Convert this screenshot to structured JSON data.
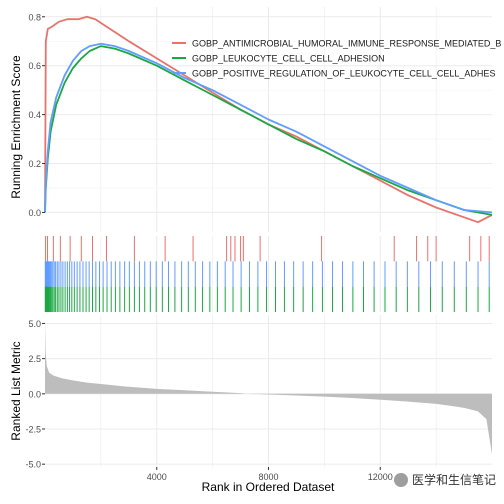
{
  "chart_data": {
    "type": "line",
    "xlabel": "Rank in Ordered Dataset",
    "x_ticks": [
      4000,
      8000,
      12000
    ],
    "xlim": [
      0,
      16000
    ],
    "top_panel": {
      "ylabel": "Running Enrichment Score",
      "ylim": [
        -0.08,
        0.84
      ],
      "y_ticks": [
        0.0,
        0.2,
        0.4,
        0.6,
        0.8
      ],
      "y_tick_labels": [
        "0.0",
        "0.2",
        "0.4",
        "0.6",
        "0.8"
      ],
      "legend_position": "top-right",
      "series": [
        {
          "name": "GOBP_ANTIMICROBIAL_HUMORAL_IMMUNE_RESPONSE_MEDIATED_B",
          "color": "#E8736C",
          "x": [
            0,
            30,
            100,
            250,
            500,
            800,
            1200,
            1500,
            1800,
            2200,
            2600,
            3000,
            4000,
            5000,
            6000,
            7000,
            8000,
            9000,
            10000,
            11000,
            12000,
            13000,
            14000,
            15000,
            15500,
            16000
          ],
          "y": [
            0.0,
            0.7,
            0.75,
            0.76,
            0.78,
            0.79,
            0.79,
            0.8,
            0.79,
            0.76,
            0.73,
            0.7,
            0.63,
            0.56,
            0.49,
            0.42,
            0.36,
            0.31,
            0.25,
            0.19,
            0.13,
            0.07,
            0.02,
            -0.02,
            -0.04,
            -0.01
          ]
        },
        {
          "name": "GOBP_LEUKOCYTE_CELL_CELL_ADHESION",
          "color": "#1BA744",
          "x": [
            0,
            30,
            100,
            200,
            400,
            700,
            1000,
            1300,
            1600,
            2000,
            2500,
            3000,
            4000,
            5000,
            6000,
            7000,
            8000,
            9000,
            10000,
            11000,
            12000,
            13000,
            14000,
            15000,
            16000
          ],
          "y": [
            0.0,
            0.1,
            0.22,
            0.33,
            0.44,
            0.53,
            0.59,
            0.63,
            0.66,
            0.68,
            0.67,
            0.65,
            0.6,
            0.54,
            0.48,
            0.42,
            0.36,
            0.3,
            0.25,
            0.19,
            0.14,
            0.09,
            0.05,
            0.01,
            -0.01
          ]
        },
        {
          "name": "GOBP_POSITIVE_REGULATION_OF_LEUKOCYTE_CELL_CELL_ADHES",
          "color": "#619CFF",
          "x": [
            0,
            30,
            100,
            200,
            400,
            700,
            1000,
            1300,
            1600,
            2000,
            2500,
            3000,
            4000,
            5000,
            6000,
            7000,
            8000,
            9000,
            10000,
            11000,
            12000,
            13000,
            14000,
            15000,
            16000
          ],
          "y": [
            0.0,
            0.12,
            0.25,
            0.37,
            0.47,
            0.56,
            0.62,
            0.66,
            0.68,
            0.69,
            0.68,
            0.66,
            0.61,
            0.55,
            0.5,
            0.44,
            0.38,
            0.33,
            0.27,
            0.21,
            0.15,
            0.1,
            0.05,
            0.01,
            0.0
          ]
        }
      ]
    },
    "hit_panel": {
      "rows": [
        {
          "series": "GOBP_ANTIMICROBIAL_HUMORAL_IMMUNE_RESPONSE_MEDIATED_B",
          "color": "#E8736C",
          "hits": [
            20,
            90,
            300,
            550,
            900,
            1300,
            1700,
            2200,
            3200,
            4300,
            5300,
            6500,
            6650,
            6800,
            7000,
            7100,
            7700,
            9900,
            12500,
            13300,
            13700,
            14000,
            15200,
            15600,
            15900
          ]
        },
        {
          "series": "GOBP_POSITIVE_REGULATION_OF_LEUKOCYTE_CELL_CELL_ADHES",
          "color": "#619CFF",
          "hits": [
            10,
            20,
            35,
            50,
            70,
            90,
            115,
            140,
            170,
            200,
            240,
            280,
            330,
            380,
            440,
            500,
            570,
            640,
            720,
            800,
            880,
            960,
            1050,
            1150,
            1250,
            1360,
            1470,
            1580,
            1700,
            1820,
            1950,
            2080,
            2220,
            2370,
            2520,
            2680,
            2850,
            3020,
            3200,
            3380,
            3570,
            3770,
            3980,
            4200,
            4420,
            4650,
            4890,
            5130,
            5380,
            5640,
            5900,
            6170,
            6450,
            6730,
            7020,
            7320,
            7620,
            7930,
            8250,
            8570,
            8900,
            9240,
            9580,
            9930,
            10290,
            10650,
            11020,
            11400,
            11780,
            12170,
            12570,
            12970,
            13380,
            13800,
            14220,
            14650,
            15080,
            15500,
            15900
          ]
        },
        {
          "series": "GOBP_LEUKOCYTE_CELL_CELL_ADHESION",
          "color": "#1BA744",
          "hits": [
            10,
            20,
            35,
            50,
            70,
            90,
            115,
            140,
            170,
            200,
            240,
            280,
            330,
            380,
            440,
            500,
            570,
            640,
            720,
            800,
            880,
            960,
            1050,
            1150,
            1250,
            1360,
            1470,
            1580,
            1700,
            1820,
            1950,
            2080,
            2220,
            2370,
            2520,
            2680,
            2850,
            3020,
            3200,
            3380,
            3570,
            3770,
            3980,
            4200,
            4420,
            4650,
            4890,
            5130,
            5380,
            5640,
            5900,
            6170,
            6450,
            6730,
            7020,
            7320,
            7620,
            7930,
            8250,
            8570,
            8900,
            9240,
            9580,
            9930,
            10290,
            10650,
            11020,
            11400,
            11780,
            12170,
            12570,
            12970,
            13380,
            13800,
            14220,
            14650,
            15080,
            15500,
            15900
          ]
        }
      ]
    },
    "bottom_panel": {
      "type": "area",
      "ylabel": "Ranked List Metric",
      "ylim": [
        -5.2,
        5.6
      ],
      "y_ticks": [
        5.0,
        2.5,
        0.0,
        -2.5,
        -5.0
      ],
      "y_tick_labels": [
        "5.0",
        "2.5",
        "0.0",
        "-2.5",
        "-5.0"
      ],
      "fill_color": "#BDBDBD",
      "x": [
        0,
        20,
        60,
        150,
        300,
        600,
        1000,
        1500,
        2000,
        3000,
        4000,
        5000,
        6000,
        7000,
        7200,
        8000,
        9000,
        10000,
        11000,
        12000,
        13000,
        14000,
        14500,
        15000,
        15500,
        15800,
        16000
      ],
      "y": [
        5.3,
        3.0,
        2.0,
        1.5,
        1.3,
        1.1,
        0.95,
        0.8,
        0.7,
        0.5,
        0.35,
        0.25,
        0.15,
        0.05,
        0.0,
        -0.05,
        -0.12,
        -0.2,
        -0.3,
        -0.42,
        -0.55,
        -0.72,
        -0.85,
        -1.0,
        -1.25,
        -1.8,
        -4.3
      ]
    }
  },
  "watermark": {
    "text": "医学和生信笔记",
    "icon": "wechat-icon"
  }
}
